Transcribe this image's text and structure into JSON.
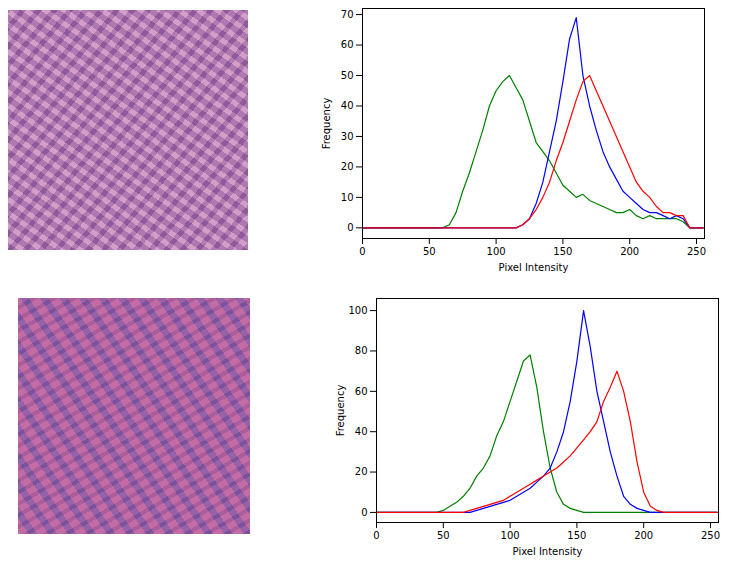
{
  "chart_data": [
    {
      "type": "line",
      "x_label": "Pixel Intensity",
      "y_label": "Frequency",
      "x": [
        0,
        5,
        10,
        15,
        20,
        25,
        30,
        35,
        40,
        45,
        50,
        55,
        60,
        65,
        70,
        75,
        80,
        85,
        90,
        95,
        100,
        105,
        110,
        115,
        120,
        125,
        130,
        135,
        140,
        145,
        150,
        155,
        160,
        165,
        170,
        175,
        180,
        185,
        190,
        195,
        200,
        205,
        210,
        215,
        220,
        225,
        230,
        235,
        240,
        245,
        250,
        255
      ],
      "xlim": [
        0,
        256
      ],
      "xticks": [
        0,
        50,
        100,
        150,
        200,
        250
      ],
      "ylim": [
        -3.5,
        72
      ],
      "yticks": [
        0,
        10,
        20,
        30,
        40,
        50,
        60,
        70
      ],
      "grid": false,
      "series": [
        {
          "color": "green",
          "values": [
            0,
            0,
            0,
            0,
            0,
            0,
            0,
            0,
            0,
            0,
            0,
            0,
            0,
            1,
            5,
            12,
            18,
            25,
            32,
            40,
            45,
            48,
            50,
            46,
            42,
            35,
            28,
            25,
            22,
            18,
            14,
            12,
            10,
            11,
            9,
            8,
            7,
            6,
            5,
            5,
            6,
            4,
            3,
            4,
            3,
            3,
            3,
            3,
            2,
            0,
            0,
            0
          ]
        },
        {
          "color": "blue",
          "values": [
            0,
            0,
            0,
            0,
            0,
            0,
            0,
            0,
            0,
            0,
            0,
            0,
            0,
            0,
            0,
            0,
            0,
            0,
            0,
            0,
            0,
            0,
            0,
            0,
            1,
            3,
            8,
            15,
            25,
            35,
            48,
            62,
            69,
            50,
            40,
            32,
            25,
            20,
            16,
            12,
            10,
            8,
            6,
            5,
            5,
            4,
            3,
            4,
            3,
            0,
            0,
            0
          ]
        },
        {
          "color": "red",
          "values": [
            0,
            0,
            0,
            0,
            0,
            0,
            0,
            0,
            0,
            0,
            0,
            0,
            0,
            0,
            0,
            0,
            0,
            0,
            0,
            0,
            0,
            0,
            0,
            0,
            1,
            3,
            6,
            10,
            15,
            22,
            28,
            35,
            42,
            48,
            50,
            45,
            40,
            35,
            30,
            25,
            20,
            15,
            12,
            10,
            7,
            5,
            5,
            4,
            4,
            0,
            0,
            0
          ]
        }
      ]
    },
    {
      "type": "line",
      "x_label": "Pixel Intensity",
      "y_label": "Frequency",
      "x": [
        0,
        5,
        10,
        15,
        20,
        25,
        30,
        35,
        40,
        45,
        50,
        55,
        60,
        65,
        70,
        75,
        80,
        85,
        90,
        95,
        100,
        105,
        110,
        115,
        120,
        125,
        130,
        135,
        140,
        145,
        150,
        155,
        160,
        165,
        170,
        175,
        180,
        185,
        190,
        195,
        200,
        205,
        210,
        215,
        220,
        225,
        230,
        235,
        240,
        245,
        250,
        255
      ],
      "xlim": [
        0,
        256
      ],
      "xticks": [
        0,
        50,
        100,
        150,
        200,
        250
      ],
      "ylim": [
        -5,
        106
      ],
      "yticks": [
        0,
        20,
        40,
        60,
        80,
        100
      ],
      "grid": false,
      "series": [
        {
          "color": "green",
          "values": [
            0,
            0,
            0,
            0,
            0,
            0,
            0,
            0,
            0,
            0,
            1,
            3,
            5,
            8,
            12,
            18,
            22,
            28,
            38,
            45,
            55,
            65,
            75,
            78,
            62,
            40,
            22,
            10,
            4,
            2,
            1,
            0,
            0,
            0,
            0,
            0,
            0,
            0,
            0,
            0,
            0,
            0,
            0,
            0,
            0,
            0,
            0,
            0,
            0,
            0,
            0,
            0
          ]
        },
        {
          "color": "blue",
          "values": [
            0,
            0,
            0,
            0,
            0,
            0,
            0,
            0,
            0,
            0,
            0,
            0,
            0,
            0,
            0,
            1,
            2,
            3,
            4,
            5,
            6,
            8,
            10,
            12,
            15,
            18,
            22,
            30,
            40,
            55,
            75,
            100,
            82,
            60,
            45,
            30,
            18,
            8,
            4,
            2,
            1,
            0,
            0,
            0,
            0,
            0,
            0,
            0,
            0,
            0,
            0,
            0
          ]
        },
        {
          "color": "red",
          "values": [
            0,
            0,
            0,
            0,
            0,
            0,
            0,
            0,
            0,
            0,
            0,
            0,
            0,
            0,
            1,
            2,
            3,
            4,
            5,
            6,
            8,
            10,
            12,
            14,
            16,
            18,
            20,
            22,
            25,
            28,
            32,
            36,
            40,
            45,
            55,
            62,
            70,
            60,
            45,
            25,
            10,
            3,
            1,
            0,
            0,
            0,
            0,
            0,
            0,
            0,
            0,
            0
          ]
        }
      ]
    }
  ]
}
